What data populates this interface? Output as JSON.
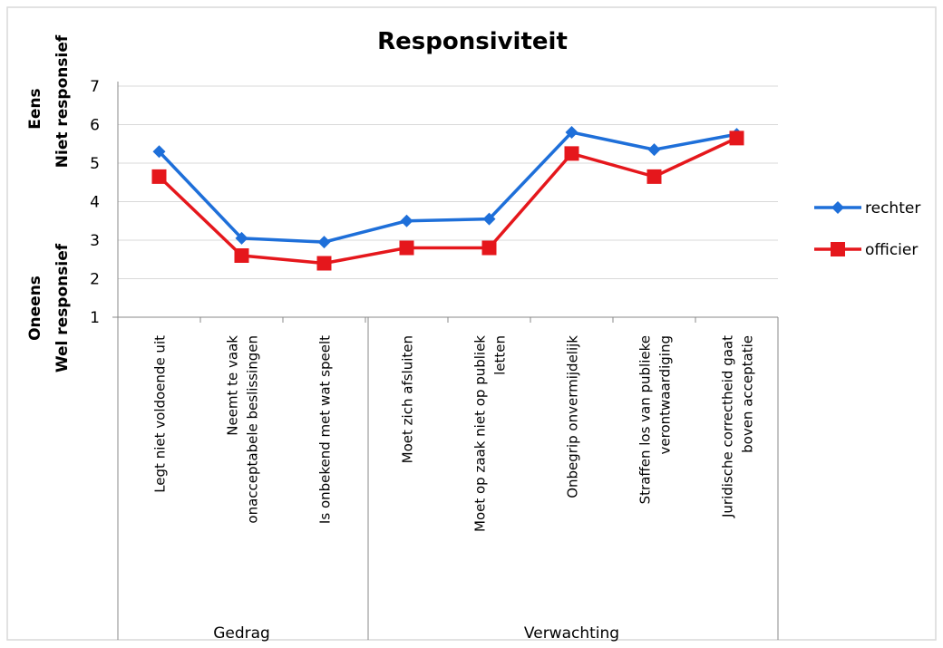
{
  "chart_data": {
    "type": "line",
    "title": "Responsiviteit",
    "y_axis": {
      "min": 1,
      "max": 7,
      "ticks": [
        1,
        2,
        3,
        4,
        5,
        6,
        7
      ],
      "top_label": [
        "Eens",
        "Niet responsief"
      ],
      "bottom_label": [
        "Oneens",
        "Wel responsief"
      ]
    },
    "categories": [
      [
        "Legt niet voldoende uit"
      ],
      [
        "Neemt te vaak",
        "onacceptabele beslissingen"
      ],
      [
        "Is onbekend met wat speelt"
      ],
      [
        "Moet zich afsluiten"
      ],
      [
        "Moet op zaak niet op publiek",
        "letten"
      ],
      [
        "Onbegrip onvermijdelijk"
      ],
      [
        "Straffen los van publieke",
        "verontwaardiging"
      ],
      [
        "Juridische correctheid gaat",
        "boven acceptatie"
      ]
    ],
    "groups": [
      {
        "label": "Gedrag",
        "from": 0,
        "to": 2
      },
      {
        "label": "Verwachting",
        "from": 3,
        "to": 7
      }
    ],
    "series": [
      {
        "name": "rechter",
        "color": "#1e6fd9",
        "marker": "diamond",
        "values": [
          5.3,
          3.05,
          2.95,
          3.5,
          3.55,
          5.8,
          5.35,
          5.75
        ]
      },
      {
        "name": "officier",
        "color": "#e5171c",
        "marker": "square",
        "values": [
          4.65,
          2.6,
          2.4,
          2.8,
          2.8,
          5.25,
          4.65,
          5.65
        ]
      }
    ],
    "grid": "horizontal",
    "legend": "right"
  }
}
